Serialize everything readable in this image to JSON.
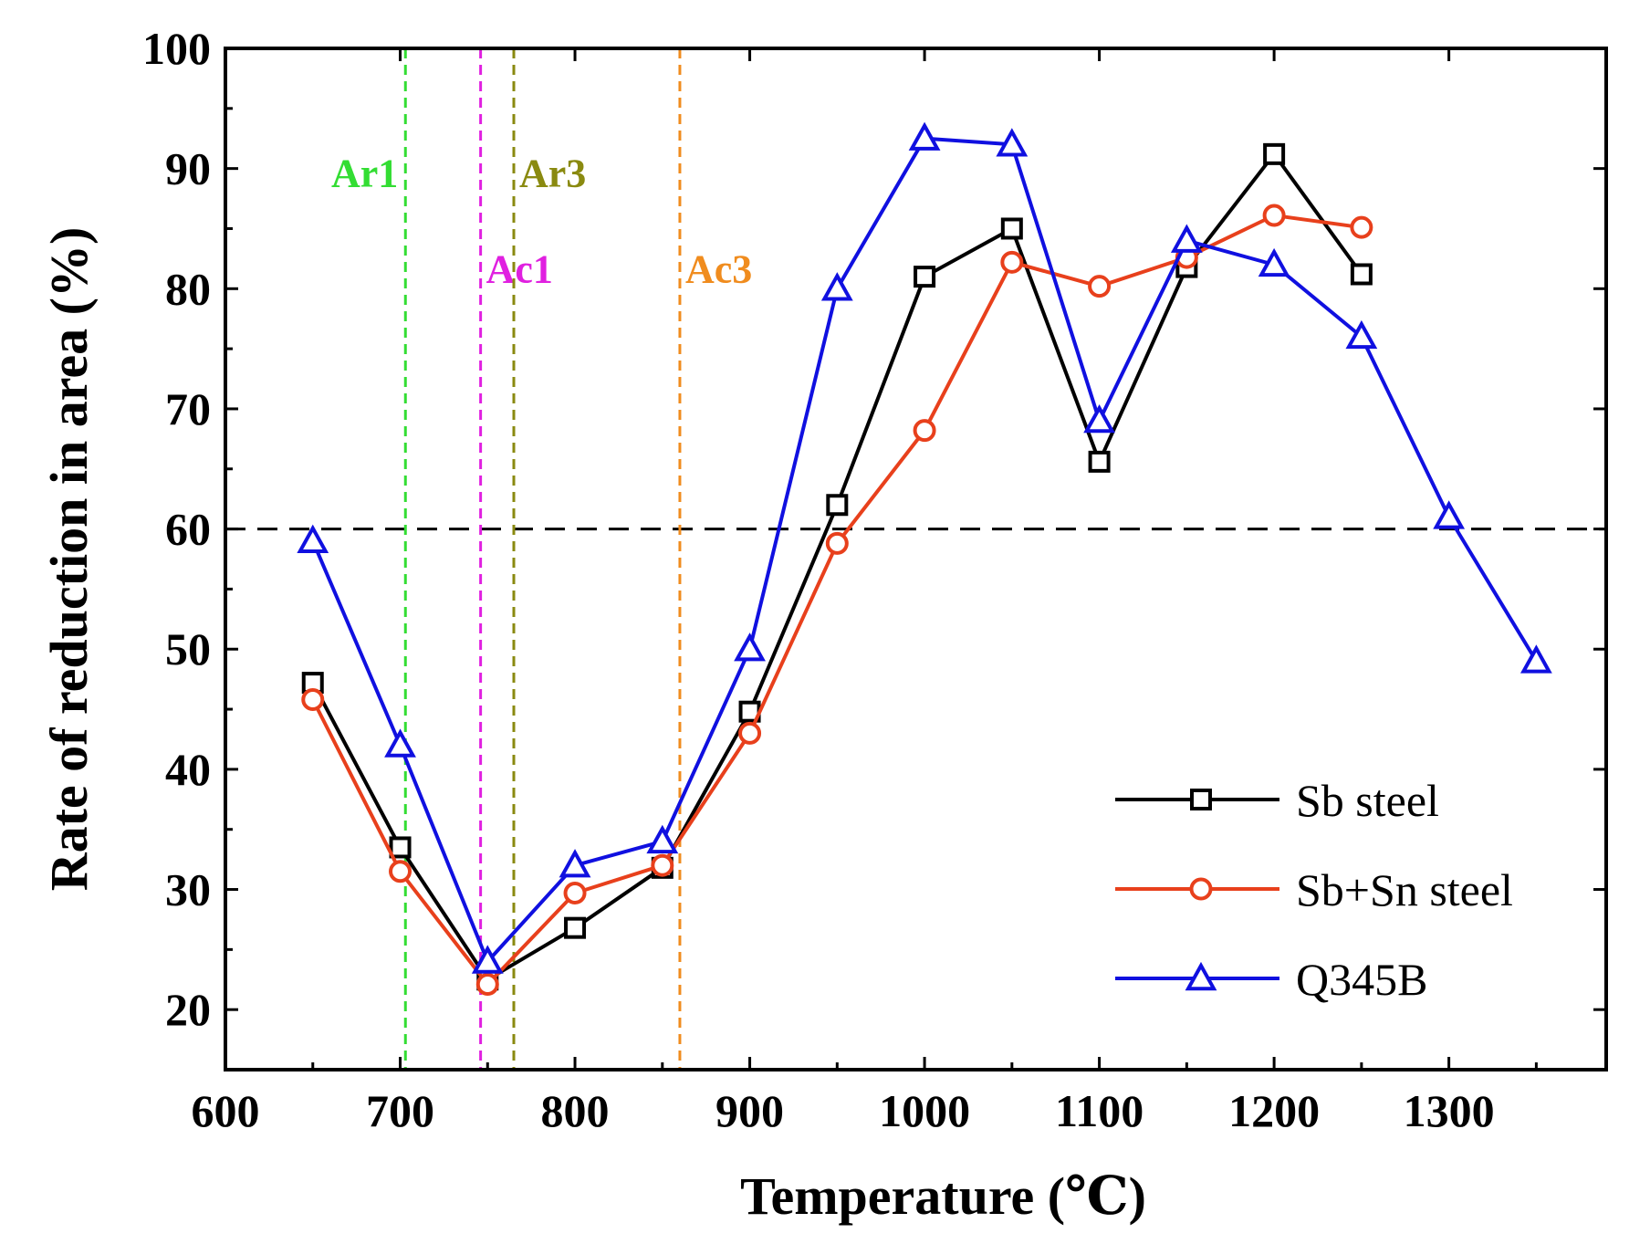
{
  "chart_data": {
    "type": "line",
    "xlabel": "Temperature (℃)",
    "ylabel": "Rate of reduction in area (%)",
    "xlim": [
      600,
      1390
    ],
    "ylim": [
      15,
      100
    ],
    "x_ticks": [
      600,
      700,
      800,
      900,
      1000,
      1100,
      1200,
      1300
    ],
    "y_ticks": [
      20,
      30,
      40,
      50,
      60,
      70,
      80,
      90,
      100
    ],
    "x_tick_labels": [
      "600",
      "700",
      "800",
      "900",
      "1000",
      "1100",
      "1200",
      "1300"
    ],
    "y_tick_labels": [
      "20",
      "30",
      "40",
      "50",
      "60",
      "70",
      "80",
      "90",
      "100"
    ],
    "threshold": {
      "value": 60,
      "color": "#000000"
    },
    "vertical_lines": [
      {
        "name": "Ar1",
        "x": 703,
        "color": "#33dd33",
        "label_y": 88.5
      },
      {
        "name": "Ac1",
        "x": 746,
        "color": "#e020e0",
        "label_y": 80.5
      },
      {
        "name": "Ar3",
        "x": 765,
        "color": "#8a8a10",
        "label_y": 88.5
      },
      {
        "name": "Ac3",
        "x": 860,
        "color": "#f08c1e",
        "label_y": 80.5
      }
    ],
    "x": [
      650,
      700,
      750,
      800,
      850,
      900,
      950,
      1000,
      1050,
      1100,
      1150,
      1200,
      1250,
      1300,
      1350
    ],
    "series": [
      {
        "name": "Sb steel",
        "color": "#000000",
        "marker": "square",
        "x": [
          650,
          700,
          750,
          800,
          850,
          900,
          950,
          1000,
          1050,
          1100,
          1150,
          1200,
          1250
        ],
        "values": [
          47.2,
          33.5,
          22.5,
          26.8,
          31.8,
          44.8,
          62,
          81,
          85,
          65.6,
          81.8,
          91.2,
          81.2
        ]
      },
      {
        "name": "Sb+Sn steel",
        "color": "#e8401c",
        "marker": "circle",
        "x": [
          650,
          700,
          750,
          800,
          850,
          900,
          950,
          1000,
          1050,
          1100,
          1150,
          1200,
          1250
        ],
        "values": [
          45.8,
          31.5,
          22.1,
          29.7,
          32,
          43,
          58.8,
          68.2,
          82.2,
          80.2,
          82.6,
          86.1,
          85.1
        ]
      },
      {
        "name": "Q345B",
        "color": "#1010e0",
        "marker": "triangle",
        "x": [
          650,
          700,
          750,
          800,
          850,
          900,
          950,
          1000,
          1050,
          1100,
          1150,
          1200,
          1250,
          1300,
          1350
        ],
        "values": [
          59,
          42,
          24,
          32,
          34,
          50,
          80,
          92.5,
          92,
          69,
          84,
          82,
          76,
          61,
          49
        ]
      }
    ],
    "legend": {
      "position": "bottom-right",
      "entries": [
        "Sb steel",
        "Sb+Sn steel",
        "Q345B"
      ]
    }
  }
}
